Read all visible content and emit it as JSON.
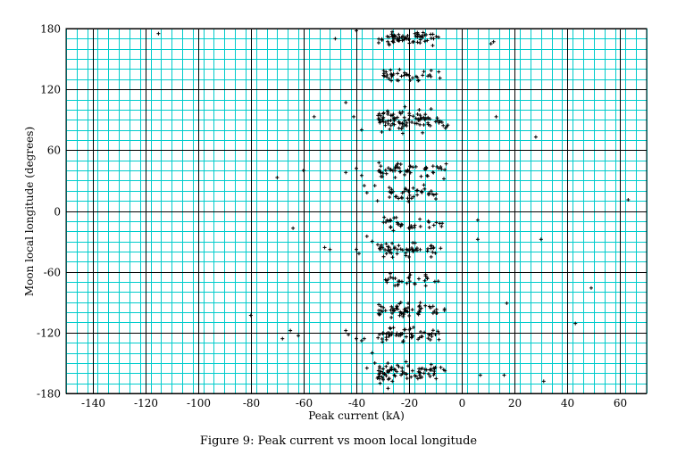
{
  "caption": "Figure 9: Peak current vs moon local longitude",
  "chart_data": {
    "type": "scatter",
    "xlabel": "Peak current (kA)",
    "ylabel": "Moon local longitude (degrees)",
    "xlim": [
      -150,
      70
    ],
    "ylim": [
      -180,
      180
    ],
    "x_ticks": [
      -140,
      -120,
      -100,
      -80,
      -60,
      -40,
      -20,
      0,
      20,
      40,
      60
    ],
    "y_ticks": [
      -180,
      -120,
      -60,
      0,
      60,
      120,
      180
    ],
    "x_minor_step": 4,
    "y_minor_step": 10,
    "grid": true,
    "colors": {
      "minor_grid": "#00cccc",
      "major_grid": "#000000",
      "points": "#000000"
    },
    "points": [
      [
        -115,
        175
      ],
      [
        -48,
        170
      ],
      [
        -40,
        178
      ],
      [
        11,
        165
      ],
      [
        12,
        167
      ],
      [
        -44,
        107
      ],
      [
        -56,
        93
      ],
      [
        13,
        93
      ],
      [
        28,
        73
      ],
      [
        -41,
        93
      ],
      [
        -38,
        80
      ],
      [
        -70,
        33
      ],
      [
        -60,
        40
      ],
      [
        -44,
        38
      ],
      [
        -40,
        42
      ],
      [
        -38,
        35
      ],
      [
        -37,
        25
      ],
      [
        -36,
        18
      ],
      [
        -33,
        25
      ],
      [
        -32,
        10
      ],
      [
        63,
        11
      ],
      [
        -64,
        -17
      ],
      [
        -52,
        -36
      ],
      [
        -50,
        -38
      ],
      [
        -40,
        -38
      ],
      [
        -39,
        -42
      ],
      [
        -36,
        -25
      ],
      [
        -34,
        -30
      ],
      [
        6,
        -9
      ],
      [
        6,
        -28
      ],
      [
        30,
        -28
      ],
      [
        49,
        -76
      ],
      [
        -80,
        -103
      ],
      [
        17,
        -91
      ],
      [
        43,
        -111
      ],
      [
        -65,
        -118
      ],
      [
        -62,
        -123
      ],
      [
        -68,
        -126
      ],
      [
        -44,
        -118
      ],
      [
        -43,
        -122
      ],
      [
        -40,
        -126
      ],
      [
        -38,
        -128
      ],
      [
        -37,
        -126
      ],
      [
        -34,
        -140
      ],
      [
        -33,
        -150
      ],
      [
        -36,
        -155
      ],
      [
        -32,
        -165
      ],
      [
        -31,
        -170
      ],
      [
        -28,
        -175
      ],
      [
        -30,
        -160
      ],
      [
        7,
        -162
      ],
      [
        16,
        -162
      ],
      [
        31,
        -168
      ]
    ],
    "clusters": [
      {
        "y": 170,
        "spread_y": 9,
        "x_min": -32,
        "x_max": -6,
        "count": 70
      },
      {
        "y": 134,
        "spread_y": 8,
        "x_min": -30,
        "x_max": -7,
        "count": 40
      },
      {
        "y": 90,
        "spread_y": 16,
        "x_min": -32,
        "x_max": -5,
        "count": 95
      },
      {
        "y": 40,
        "spread_y": 12,
        "x_min": -32,
        "x_max": -5,
        "count": 55
      },
      {
        "y": 18,
        "spread_y": 10,
        "x_min": -28,
        "x_max": -6,
        "count": 40
      },
      {
        "y": -12,
        "spread_y": 9,
        "x_min": -30,
        "x_max": -5,
        "count": 35
      },
      {
        "y": -38,
        "spread_y": 10,
        "x_min": -32,
        "x_max": -5,
        "count": 55
      },
      {
        "y": -68,
        "spread_y": 8,
        "x_min": -30,
        "x_max": -7,
        "count": 30
      },
      {
        "y": -98,
        "spread_y": 10,
        "x_min": -32,
        "x_max": -5,
        "count": 60
      },
      {
        "y": -122,
        "spread_y": 10,
        "x_min": -32,
        "x_max": -5,
        "count": 55
      },
      {
        "y": -160,
        "spread_y": 13,
        "x_min": -32,
        "x_max": -6,
        "count": 80
      }
    ]
  }
}
